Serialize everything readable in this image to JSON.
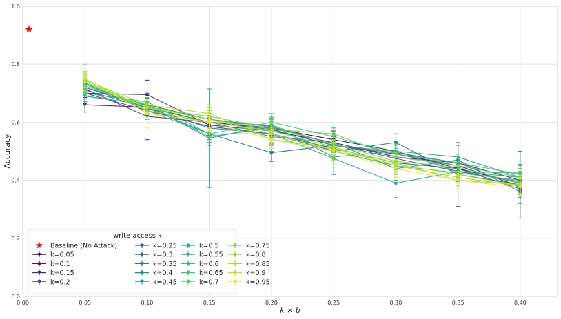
{
  "chart_data": {
    "type": "line",
    "title": "",
    "xlabel": "k × b",
    "ylabel": "Accuracy",
    "xlim": [
      0.0,
      0.43
    ],
    "ylim": [
      0.0,
      1.0
    ],
    "grid": true,
    "x_ticks": [
      "0.00",
      "0.05",
      "0.10",
      "0.15",
      "0.20",
      "0.25",
      "0.30",
      "0.35",
      "0.40"
    ],
    "y_ticks": [
      "0.0",
      "0.2",
      "0.4",
      "0.6",
      "0.8",
      "1.0"
    ],
    "legend_title": "write access k",
    "legend_position": "lower-left",
    "baseline": {
      "name": "Baseline (No Attack)",
      "x": 0.0,
      "y": 0.92,
      "marker": "star",
      "color": "#ee1111"
    },
    "x": [
      0.05,
      0.1,
      0.15,
      0.2,
      0.25,
      0.3,
      0.35,
      0.4
    ],
    "series": [
      {
        "name": "k=0.05",
        "color": "#440154",
        "values": [
          0.66,
          0.652,
          0.6,
          0.58,
          0.54,
          0.5,
          0.44,
          0.39
        ],
        "errors": [
          0.025,
          0.03,
          0.03,
          0.03,
          0.03,
          0.03,
          0.03,
          0.03
        ]
      },
      {
        "name": "k=0.1",
        "color": "#481a6c",
        "values": [
          0.7,
          0.695,
          0.59,
          0.57,
          0.53,
          0.48,
          0.46,
          0.4
        ],
        "errors": [
          0.03,
          0.05,
          0.03,
          0.03,
          0.03,
          0.03,
          0.03,
          0.03
        ]
      },
      {
        "name": "k=0.15",
        "color": "#472f7d",
        "values": [
          0.715,
          0.62,
          0.6,
          0.575,
          0.52,
          0.49,
          0.45,
          0.38
        ],
        "errors": [
          0.03,
          0.08,
          0.03,
          0.03,
          0.03,
          0.03,
          0.03,
          0.03
        ]
      },
      {
        "name": "k=0.2",
        "color": "#414487",
        "values": [
          0.7,
          0.64,
          0.585,
          0.56,
          0.51,
          0.46,
          0.44,
          0.37
        ],
        "errors": [
          0.03,
          0.03,
          0.03,
          0.03,
          0.03,
          0.03,
          0.03,
          0.03
        ]
      },
      {
        "name": "k=0.25",
        "color": "#39568c",
        "values": [
          0.69,
          0.66,
          0.61,
          0.585,
          0.525,
          0.475,
          0.43,
          0.395
        ],
        "errors": [
          0.03,
          0.03,
          0.03,
          0.03,
          0.03,
          0.03,
          0.03,
          0.03
        ]
      },
      {
        "name": "k=0.3",
        "color": "#31688e",
        "values": [
          0.72,
          0.65,
          0.56,
          0.495,
          0.52,
          0.495,
          0.46,
          0.375
        ],
        "errors": [
          0.03,
          0.03,
          0.03,
          0.03,
          0.03,
          0.03,
          0.03,
          0.03
        ]
      },
      {
        "name": "k=0.35",
        "color": "#2a788e",
        "values": [
          0.71,
          0.65,
          0.58,
          0.56,
          0.5,
          0.53,
          0.42,
          0.385
        ],
        "errors": [
          0.03,
          0.03,
          0.04,
          0.03,
          0.03,
          0.03,
          0.11,
          0.03
        ]
      },
      {
        "name": "k=0.4",
        "color": "#23888e",
        "values": [
          0.735,
          0.64,
          0.6,
          0.55,
          0.53,
          0.44,
          0.47,
          0.36
        ],
        "errors": [
          0.03,
          0.03,
          0.03,
          0.03,
          0.03,
          0.03,
          0.05,
          0.09
        ]
      },
      {
        "name": "k=0.45",
        "color": "#1f988b",
        "values": [
          0.72,
          0.66,
          0.545,
          0.59,
          0.48,
          0.5,
          0.48,
          0.41
        ],
        "errors": [
          0.03,
          0.03,
          0.17,
          0.03,
          0.06,
          0.03,
          0.04,
          0.09
        ]
      },
      {
        "name": "k=0.5",
        "color": "#22a884",
        "values": [
          0.7,
          0.67,
          0.56,
          0.56,
          0.475,
          0.39,
          0.43,
          0.41
        ],
        "errors": [
          0.03,
          0.03,
          0.03,
          0.06,
          0.03,
          0.05,
          0.03,
          0.03
        ]
      },
      {
        "name": "k=0.55",
        "color": "#2ab07f",
        "values": [
          0.69,
          0.66,
          0.55,
          0.58,
          0.5,
          0.45,
          0.425,
          0.4
        ],
        "errors": [
          0.03,
          0.03,
          0.03,
          0.03,
          0.03,
          0.05,
          0.03,
          0.03
        ]
      },
      {
        "name": "k=0.6",
        "color": "#35b779",
        "values": [
          0.73,
          0.65,
          0.6,
          0.59,
          0.52,
          0.5,
          0.43,
          0.425
        ],
        "errors": [
          0.03,
          0.03,
          0.03,
          0.03,
          0.06,
          0.06,
          0.03,
          0.03
        ]
      },
      {
        "name": "k=0.65",
        "color": "#4ac16d",
        "values": [
          0.74,
          0.64,
          0.56,
          0.6,
          0.55,
          0.49,
          0.46,
          0.42
        ],
        "errors": [
          0.03,
          0.03,
          0.03,
          0.03,
          0.03,
          0.03,
          0.03,
          0.03
        ]
      },
      {
        "name": "k=0.7",
        "color": "#5ec962",
        "values": [
          0.725,
          0.655,
          0.61,
          0.575,
          0.56,
          0.48,
          0.45,
          0.41
        ],
        "errors": [
          0.03,
          0.03,
          0.03,
          0.03,
          0.03,
          0.03,
          0.03,
          0.03
        ]
      },
      {
        "name": "k=0.75",
        "color": "#75d054",
        "values": [
          0.745,
          0.65,
          0.62,
          0.58,
          0.525,
          0.465,
          0.445,
          0.39
        ],
        "errors": [
          0.03,
          0.03,
          0.03,
          0.03,
          0.03,
          0.03,
          0.03,
          0.03
        ]
      },
      {
        "name": "k=0.8",
        "color": "#8fd744",
        "values": [
          0.75,
          0.64,
          0.6,
          0.57,
          0.515,
          0.45,
          0.41,
          0.38
        ],
        "errors": [
          0.05,
          0.03,
          0.05,
          0.03,
          0.03,
          0.03,
          0.03,
          0.03
        ]
      },
      {
        "name": "k=0.85",
        "color": "#a8db34",
        "values": [
          0.745,
          0.66,
          0.63,
          0.54,
          0.51,
          0.46,
          0.4,
          0.385
        ],
        "errors": [
          0.03,
          0.03,
          0.03,
          0.03,
          0.03,
          0.03,
          0.03,
          0.03
        ]
      },
      {
        "name": "k=0.9",
        "color": "#c2df23",
        "values": [
          0.74,
          0.65,
          0.61,
          0.56,
          0.505,
          0.455,
          0.42,
          0.38
        ],
        "errors": [
          0.03,
          0.03,
          0.03,
          0.03,
          0.03,
          0.03,
          0.03,
          0.03
        ]
      },
      {
        "name": "k=0.95",
        "color": "#f0e41e",
        "values": [
          0.75,
          0.63,
          0.6,
          0.54,
          0.5,
          0.44,
          0.4,
          0.375
        ],
        "errors": [
          0.03,
          0.05,
          0.03,
          0.03,
          0.03,
          0.03,
          0.03,
          0.03
        ]
      }
    ]
  }
}
